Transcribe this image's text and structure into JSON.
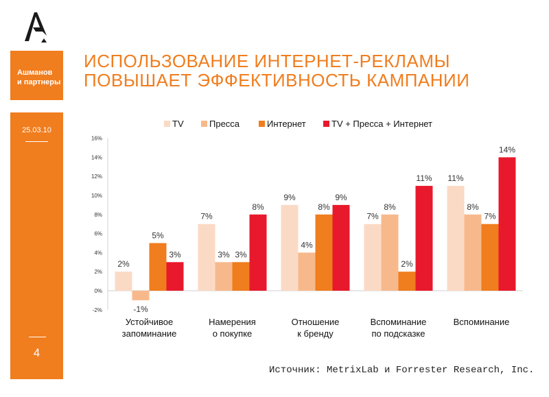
{
  "logo": {
    "icon": "brand-a-logo-icon",
    "color": "#1a1a1a"
  },
  "sidebar": {
    "company": [
      "Ашманов",
      "и партнеры"
    ],
    "date": "25.03.10",
    "page": "4",
    "color": "#f07d1e"
  },
  "title": {
    "line1": "ИСПОЛЬЗОВАНИЕ ИНТЕРНЕТ-РЕКЛАМЫ",
    "line2": "ПОВЫШАЕТ ЭФФЕКТИВНОСТЬ КАМПАНИИ"
  },
  "source": "Источник: MetrixLab и Forrester Research, Inc.",
  "chart_data": {
    "type": "bar",
    "categories": [
      [
        "Устойчивое",
        "запоминание"
      ],
      [
        "Намерения",
        "о покупке"
      ],
      [
        "Отношение",
        "к бренду"
      ],
      [
        "Вспоминание",
        "по подсказке"
      ],
      [
        "Вспоминание"
      ]
    ],
    "series": [
      {
        "name": "TV",
        "color": "#fbdac5",
        "values": [
          2,
          7,
          9,
          7,
          11
        ],
        "labels": [
          "2%",
          "7%",
          "9%",
          "7%",
          "11%"
        ]
      },
      {
        "name": "Пресса",
        "color": "#f7b98c",
        "values": [
          -1,
          3,
          4,
          8,
          8
        ],
        "labels": [
          "-1%",
          "3%",
          "4%",
          "8%",
          "8%"
        ]
      },
      {
        "name": "Интернет",
        "color": "#f07d1e",
        "values": [
          5,
          3,
          8,
          2,
          7
        ],
        "labels": [
          "5%",
          "3%",
          "8%",
          "2%",
          "7%"
        ]
      },
      {
        "name": "TV + Пресса + Интернет",
        "color": "#e8192c",
        "values": [
          3,
          8,
          9,
          11,
          14
        ],
        "labels": [
          "3%",
          "8%",
          "9%",
          "11%",
          "14%"
        ]
      }
    ],
    "yticks": [
      "-2%",
      "0%",
      "2%",
      "4%",
      "6%",
      "8%",
      "10%",
      "12%",
      "14%",
      "16%"
    ],
    "ylim": [
      -2,
      16
    ],
    "grid": false,
    "legend_position": "top"
  }
}
